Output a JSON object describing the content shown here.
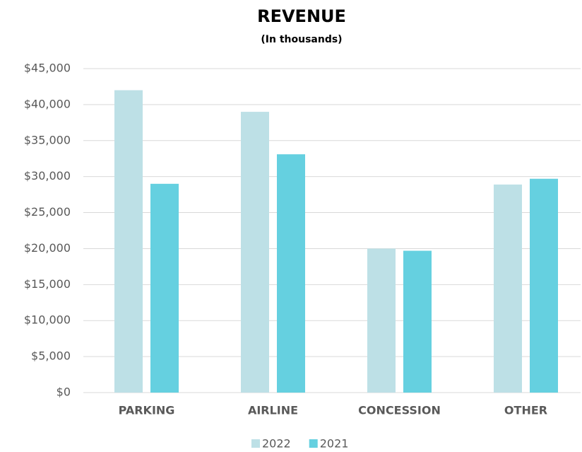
{
  "chart_data": {
    "type": "bar",
    "title": "REVENUE",
    "subtitle": "(In thousands)",
    "categories": [
      "PARKING",
      "AIRLINE",
      "CONCESSION",
      "OTHER"
    ],
    "series": [
      {
        "name": "2022",
        "color": "#bde0e6",
        "values": [
          42000,
          39000,
          20000,
          28900
        ]
      },
      {
        "name": "2021",
        "color": "#65d0e0",
        "values": [
          29000,
          33100,
          19700,
          29700
        ]
      }
    ],
    "ylim": [
      0,
      45000
    ],
    "yticks": [
      {
        "value": 0,
        "label": "$0"
      },
      {
        "value": 5000,
        "label": "$5,000"
      },
      {
        "value": 10000,
        "label": "$10,000"
      },
      {
        "value": 15000,
        "label": "$15,000"
      },
      {
        "value": 20000,
        "label": "$20,000"
      },
      {
        "value": 25000,
        "label": "$25,000"
      },
      {
        "value": 30000,
        "label": "$30,000"
      },
      {
        "value": 35000,
        "label": "$35,000"
      },
      {
        "value": 40000,
        "label": "$40,000"
      },
      {
        "value": 45000,
        "label": "$45,000"
      }
    ],
    "grid": true,
    "legend": "bottom"
  }
}
